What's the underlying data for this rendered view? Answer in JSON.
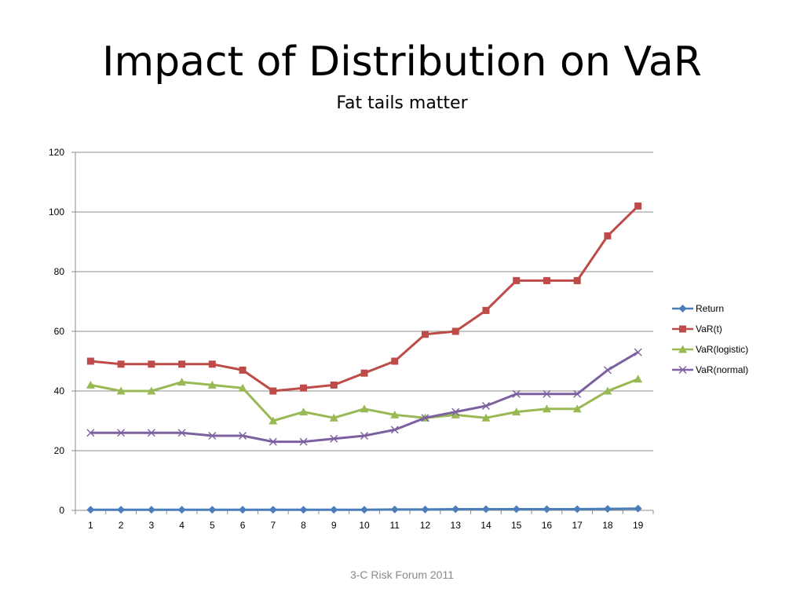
{
  "slide": {
    "title": "Impact of Distribution on VaR",
    "subtitle": "Fat tails matter",
    "footer": "3-C Risk Forum 2011"
  },
  "chart_data": {
    "type": "line",
    "title": "",
    "xlabel": "",
    "ylabel": "",
    "x": [
      1,
      2,
      3,
      4,
      5,
      6,
      7,
      8,
      9,
      10,
      11,
      12,
      13,
      14,
      15,
      16,
      17,
      18,
      19
    ],
    "ylim": [
      0,
      120
    ],
    "yticks": [
      0,
      20,
      40,
      60,
      80,
      100,
      120
    ],
    "grid": true,
    "legend_position": "right",
    "series": [
      {
        "name": "Return",
        "color": "#4a7ebb",
        "marker": "diamond",
        "values": [
          0.2,
          0.2,
          0.2,
          0.2,
          0.2,
          0.2,
          0.2,
          0.2,
          0.2,
          0.2,
          0.3,
          0.3,
          0.4,
          0.4,
          0.4,
          0.4,
          0.4,
          0.5,
          0.6
        ]
      },
      {
        "name": "VaR(t)",
        "color": "#be4b48",
        "marker": "square",
        "values": [
          50,
          49,
          49,
          49,
          49,
          47,
          40,
          41,
          42,
          46,
          50,
          59,
          60,
          67,
          77,
          77,
          77,
          92,
          102
        ]
      },
      {
        "name": "VaR(logistic)",
        "color": "#98b954",
        "marker": "triangle",
        "values": [
          42,
          40,
          40,
          43,
          42,
          41,
          30,
          33,
          31,
          34,
          32,
          31,
          32,
          31,
          33,
          34,
          34,
          40,
          44
        ]
      },
      {
        "name": "VaR(normal)",
        "color": "#7d60a0",
        "marker": "x",
        "values": [
          26,
          26,
          26,
          26,
          25,
          25,
          23,
          23,
          24,
          25,
          27,
          31,
          33,
          35,
          39,
          39,
          39,
          47,
          53
        ]
      }
    ]
  }
}
